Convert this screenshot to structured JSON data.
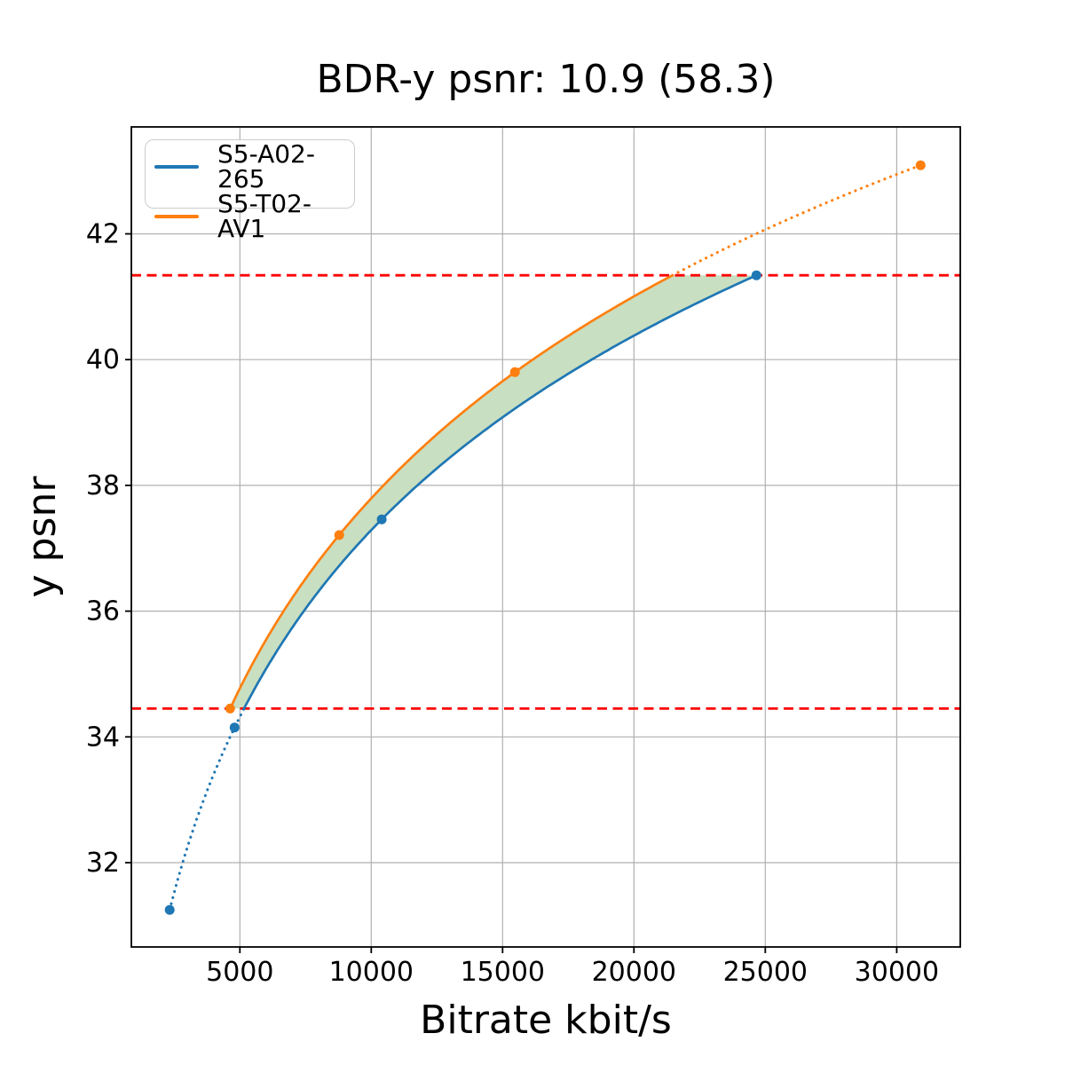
{
  "chart_data": {
    "type": "line",
    "title": "BDR-y psnr: 10.9 (58.3)",
    "xlabel": "Bitrate kbit/s",
    "ylabel": "y psnr",
    "xlim": [
      870,
      32420
    ],
    "ylim": [
      30.66,
      43.7
    ],
    "xticks": [
      5000,
      10000,
      15000,
      20000,
      25000,
      30000
    ],
    "yticks": [
      32,
      34,
      36,
      38,
      40,
      42
    ],
    "grid": true,
    "grid_color": "#b0b0b0",
    "legend_position": "upper left",
    "series": [
      {
        "name": "S5-A02-265",
        "color": "#1f77b4",
        "marker": "circle",
        "points": [
          [
            2330,
            31.25
          ],
          [
            4800,
            34.15
          ],
          [
            10400,
            37.46
          ],
          [
            24660,
            41.34
          ]
        ]
      },
      {
        "name": "S5-T02-AV1",
        "color": "#ff7f0e",
        "marker": "circle",
        "points": [
          [
            4630,
            34.45
          ],
          [
            8780,
            37.21
          ],
          [
            15470,
            39.8
          ],
          [
            30910,
            43.09
          ]
        ]
      }
    ],
    "hlines": {
      "values": [
        34.45,
        41.34
      ],
      "color": "#ff0000",
      "style": "dashed"
    },
    "shaded_region": {
      "color": "#c9dfc1"
    }
  }
}
